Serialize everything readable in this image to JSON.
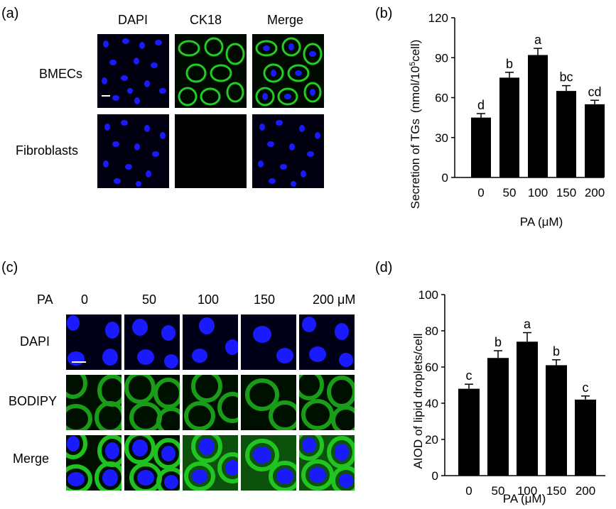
{
  "panels": {
    "a": {
      "label": "(a)",
      "columns": [
        "DAPI",
        "CK18",
        "Merge"
      ],
      "rows": [
        "BMECs",
        "Fibroblasts"
      ]
    },
    "b": {
      "label": "(b)"
    },
    "c": {
      "label": "(c)",
      "pa_label": "PA",
      "concentrations": [
        "0",
        "50",
        "100",
        "150",
        "200 μM"
      ],
      "rows": [
        "DAPI",
        "BODIPY",
        "Merge"
      ]
    },
    "d": {
      "label": "(d)"
    }
  },
  "colors": {
    "dapi": "#1a1aff",
    "ck18": "#22cc22",
    "bar": "#000000"
  },
  "chart_data": [
    {
      "type": "bar",
      "categories": [
        "0",
        "50",
        "100",
        "150",
        "200"
      ],
      "values": [
        45,
        75,
        92,
        65,
        55
      ],
      "errors": [
        3,
        4,
        5,
        4,
        3
      ],
      "annotations": [
        "d",
        "b",
        "a",
        "bc",
        "cd"
      ],
      "ylabel_main": "Secretion of  TGs",
      "ylabel_unit_pre": "(nmol/10",
      "ylabel_unit_sup": "5",
      "ylabel_unit_post": "cell)",
      "xlabel": "PA (μM)",
      "ylim": [
        0,
        120
      ],
      "yticks": [
        "0",
        "30",
        "60",
        "90",
        "120"
      ]
    },
    {
      "type": "bar",
      "categories": [
        "0",
        "50",
        "100",
        "150",
        "200"
      ],
      "values": [
        48,
        65,
        74,
        61,
        42
      ],
      "errors": [
        2.5,
        4,
        5,
        3,
        2
      ],
      "annotations": [
        "c",
        "b",
        "a",
        "b",
        "c"
      ],
      "ylabel": "AIOD of lipid droplets/cell",
      "xlabel": "PA  (μM)",
      "ylim": [
        0,
        100
      ],
      "yticks": [
        "0",
        "20",
        "40",
        "60",
        "80",
        "100"
      ]
    }
  ]
}
